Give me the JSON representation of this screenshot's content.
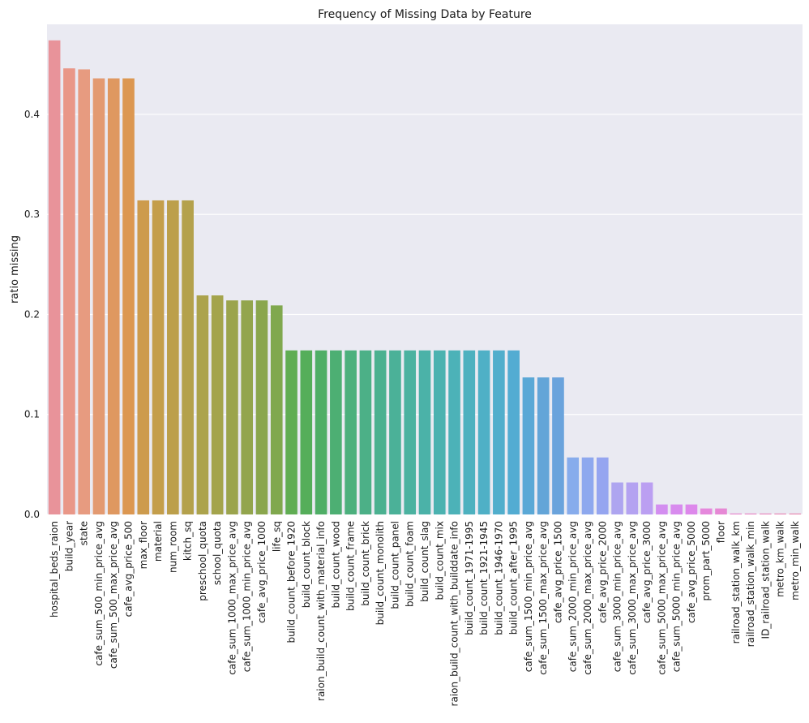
{
  "chart_data": {
    "type": "bar",
    "title": "Frequency of Missing Data by Feature",
    "xlabel": "",
    "ylabel": "ratio missing",
    "ylim": [
      0,
      0.49
    ],
    "yticks": [
      "0.0",
      "0.1",
      "0.2",
      "0.3",
      "0.4"
    ],
    "grid": true,
    "categories": [
      "hospital_beds_raion",
      "build_year",
      "state",
      "cafe_sum_500_min_price_avg",
      "cafe_sum_500_max_price_avg",
      "cafe_avg_price_500",
      "max_floor",
      "material",
      "num_room",
      "kitch_sq",
      "preschool_quota",
      "school_quota",
      "cafe_sum_1000_max_price_avg",
      "cafe_sum_1000_min_price_avg",
      "cafe_avg_price_1000",
      "life_sq",
      "build_count_before_1920",
      "build_count_block",
      "raion_build_count_with_material_info",
      "build_count_wood",
      "build_count_frame",
      "build_count_brick",
      "build_count_monolith",
      "build_count_panel",
      "build_count_foam",
      "build_count_slag",
      "build_count_mix",
      "raion_build_count_with_builddate_info",
      "build_count_1971-1995",
      "build_count_1921-1945",
      "build_count_1946-1970",
      "build_count_after_1995",
      "cafe_sum_1500_min_price_avg",
      "cafe_sum_1500_max_price_avg",
      "cafe_avg_price_1500",
      "cafe_sum_2000_min_price_avg",
      "cafe_sum_2000_max_price_avg",
      "cafe_avg_price_2000",
      "cafe_sum_3000_min_price_avg",
      "cafe_sum_3000_max_price_avg",
      "cafe_avg_price_3000",
      "cafe_sum_5000_max_price_avg",
      "cafe_sum_5000_min_price_avg",
      "cafe_avg_price_5000",
      "prom_part_5000",
      "floor",
      "railroad_station_walk_km",
      "railroad_station_walk_min",
      "ID_railroad_station_walk",
      "metro_km_walk",
      "metro_min_walk"
    ],
    "values": [
      0.474,
      0.446,
      0.445,
      0.436,
      0.436,
      0.436,
      0.314,
      0.314,
      0.314,
      0.314,
      0.219,
      0.219,
      0.214,
      0.214,
      0.214,
      0.209,
      0.164,
      0.164,
      0.164,
      0.164,
      0.164,
      0.164,
      0.164,
      0.164,
      0.164,
      0.164,
      0.164,
      0.164,
      0.164,
      0.164,
      0.164,
      0.164,
      0.137,
      0.137,
      0.137,
      0.057,
      0.057,
      0.057,
      0.032,
      0.032,
      0.032,
      0.01,
      0.01,
      0.01,
      0.006,
      0.006,
      0.001,
      0.001,
      0.001,
      0.001,
      0.001
    ],
    "colors": [
      "#e8939a",
      "#e99788",
      "#e79b80",
      "#e39a71",
      "#df9860",
      "#dc9751",
      "#cd9b4d",
      "#c49e4b",
      "#bc9f4b",
      "#b4a14c",
      "#aca34c",
      "#a4a44c",
      "#9ba44d",
      "#93a54d",
      "#8aa64d",
      "#80a84e",
      "#60ad53",
      "#55ae5a",
      "#4fae66",
      "#4daf73",
      "#4cb07d",
      "#4cb087",
      "#4bb190",
      "#4bb198",
      "#4bb2a0",
      "#4bb2a8",
      "#4bb2b0",
      "#4cb2b8",
      "#4db1bf",
      "#4fb0c6",
      "#51aecc",
      "#53acd2",
      "#5aa8d6",
      "#63a5d8",
      "#6aa3dc",
      "#87acec",
      "#8ea8ee",
      "#95a5f0",
      "#aea5f0",
      "#b4a2f1",
      "#bb9ff2",
      "#d38ef0",
      "#d88bee",
      "#dd88eb",
      "#e588dc",
      "#e688d5",
      "#e68ace",
      "#e78ac7",
      "#e78bc0",
      "#e78cb9",
      "#e78cb3"
    ]
  }
}
